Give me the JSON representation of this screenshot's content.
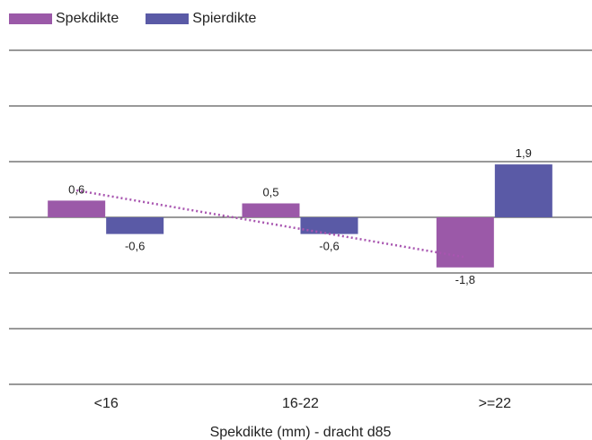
{
  "chart_data": {
    "type": "bar",
    "title": "",
    "xlabel": "Spekdikte (mm) - dracht d85",
    "ylabel": "",
    "categories": [
      "<16",
      "16-22",
      ">=22"
    ],
    "series": [
      {
        "name": "Spekdikte",
        "color": "#9b59a8",
        "values": [
          0.6,
          0.5,
          -1.8
        ],
        "labels": [
          "0,6",
          "0,5",
          "-1,8"
        ]
      },
      {
        "name": "Spierdikte",
        "color": "#5a5aa6",
        "values": [
          -0.6,
          -0.6,
          1.9
        ],
        "labels": [
          "-0,6",
          "-0,6",
          "1,9"
        ]
      }
    ],
    "trendline": {
      "series": "Spekdikte",
      "color": "#a855b0",
      "style": "dotted"
    },
    "ylim": [
      -6,
      6
    ],
    "grid": true,
    "legend": "top-left"
  }
}
